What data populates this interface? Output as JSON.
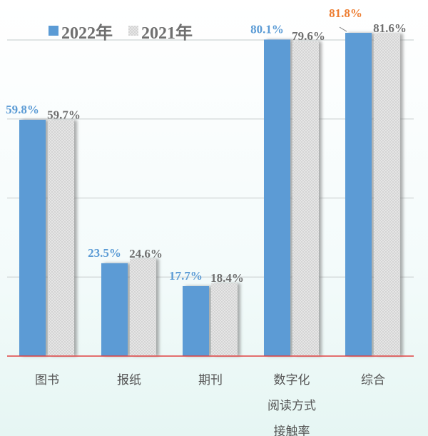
{
  "chart_data": {
    "type": "bar",
    "categories": [
      "图书",
      "报纸",
      "期刊",
      "数字化\n阅读方式\n接触率",
      "综合"
    ],
    "series": [
      {
        "name": "2022年",
        "values": [
          59.8,
          23.5,
          17.7,
          80.1,
          81.8
        ],
        "labels": [
          "59.8%",
          "23.5%",
          "17.7%",
          "80.1%",
          "81.8%"
        ],
        "color": "#5b9bd5"
      },
      {
        "name": "2021年",
        "values": [
          59.7,
          24.6,
          18.4,
          79.6,
          81.6
        ],
        "labels": [
          "59.7%",
          "24.6%",
          "18.4%",
          "79.6%",
          "81.6%"
        ],
        "color": "#e2e2e2"
      }
    ],
    "highlight_color": "#ed7d31",
    "label_color_2022": "#5b9bd5",
    "label_color_2021": "#6f6f6f",
    "baseline_color": "#e04040",
    "grid": true,
    "gridline_values": [
      20,
      40,
      60,
      80
    ],
    "ylim": [
      0,
      85
    ],
    "legend": "top-left",
    "title": "",
    "xlabel": "",
    "ylabel": ""
  }
}
